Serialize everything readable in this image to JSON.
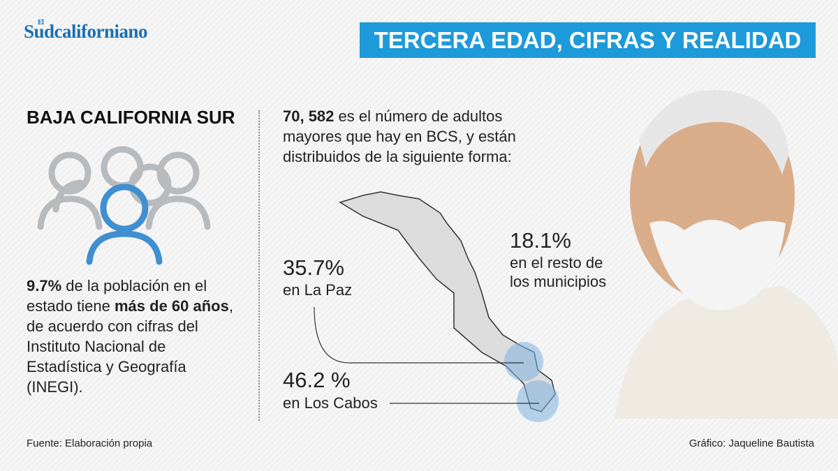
{
  "header": {
    "logo_prefix": "El",
    "logo": "Sudcaliforniano",
    "title": "TERCERA EDAD, CIFRAS Y REALIDAD"
  },
  "left": {
    "heading": "BAJA CALIFORNIA SUR",
    "paragraph": [
      {
        "text": "9.7%",
        "bold": true
      },
      {
        "text": " de la población en el estado tiene ",
        "bold": false
      },
      {
        "text": "más de 60 años",
        "bold": true
      },
      {
        "text": ", de acuerdo con cifras del Instituto Nacional de Estadística y Geografía (INEGI).",
        "bold": false
      }
    ]
  },
  "intro": [
    {
      "text": "70, 582",
      "bold": true
    },
    {
      "text": " es el número de adultos mayores que hay en BCS, y están distribuidos de la siguiente forma:",
      "bold": false
    }
  ],
  "regions": [
    {
      "value": "35.7%",
      "label": [
        "en La Paz"
      ]
    },
    {
      "value": "46.2 %",
      "label": [
        "en Los Cabos"
      ]
    },
    {
      "value": "18.1%",
      "label": [
        "en el resto de",
        "los municipios"
      ]
    }
  ],
  "footer": {
    "source": "Fuente: Elaboración propia",
    "credit": "Gráfico: Jaqueline Bautista"
  }
}
